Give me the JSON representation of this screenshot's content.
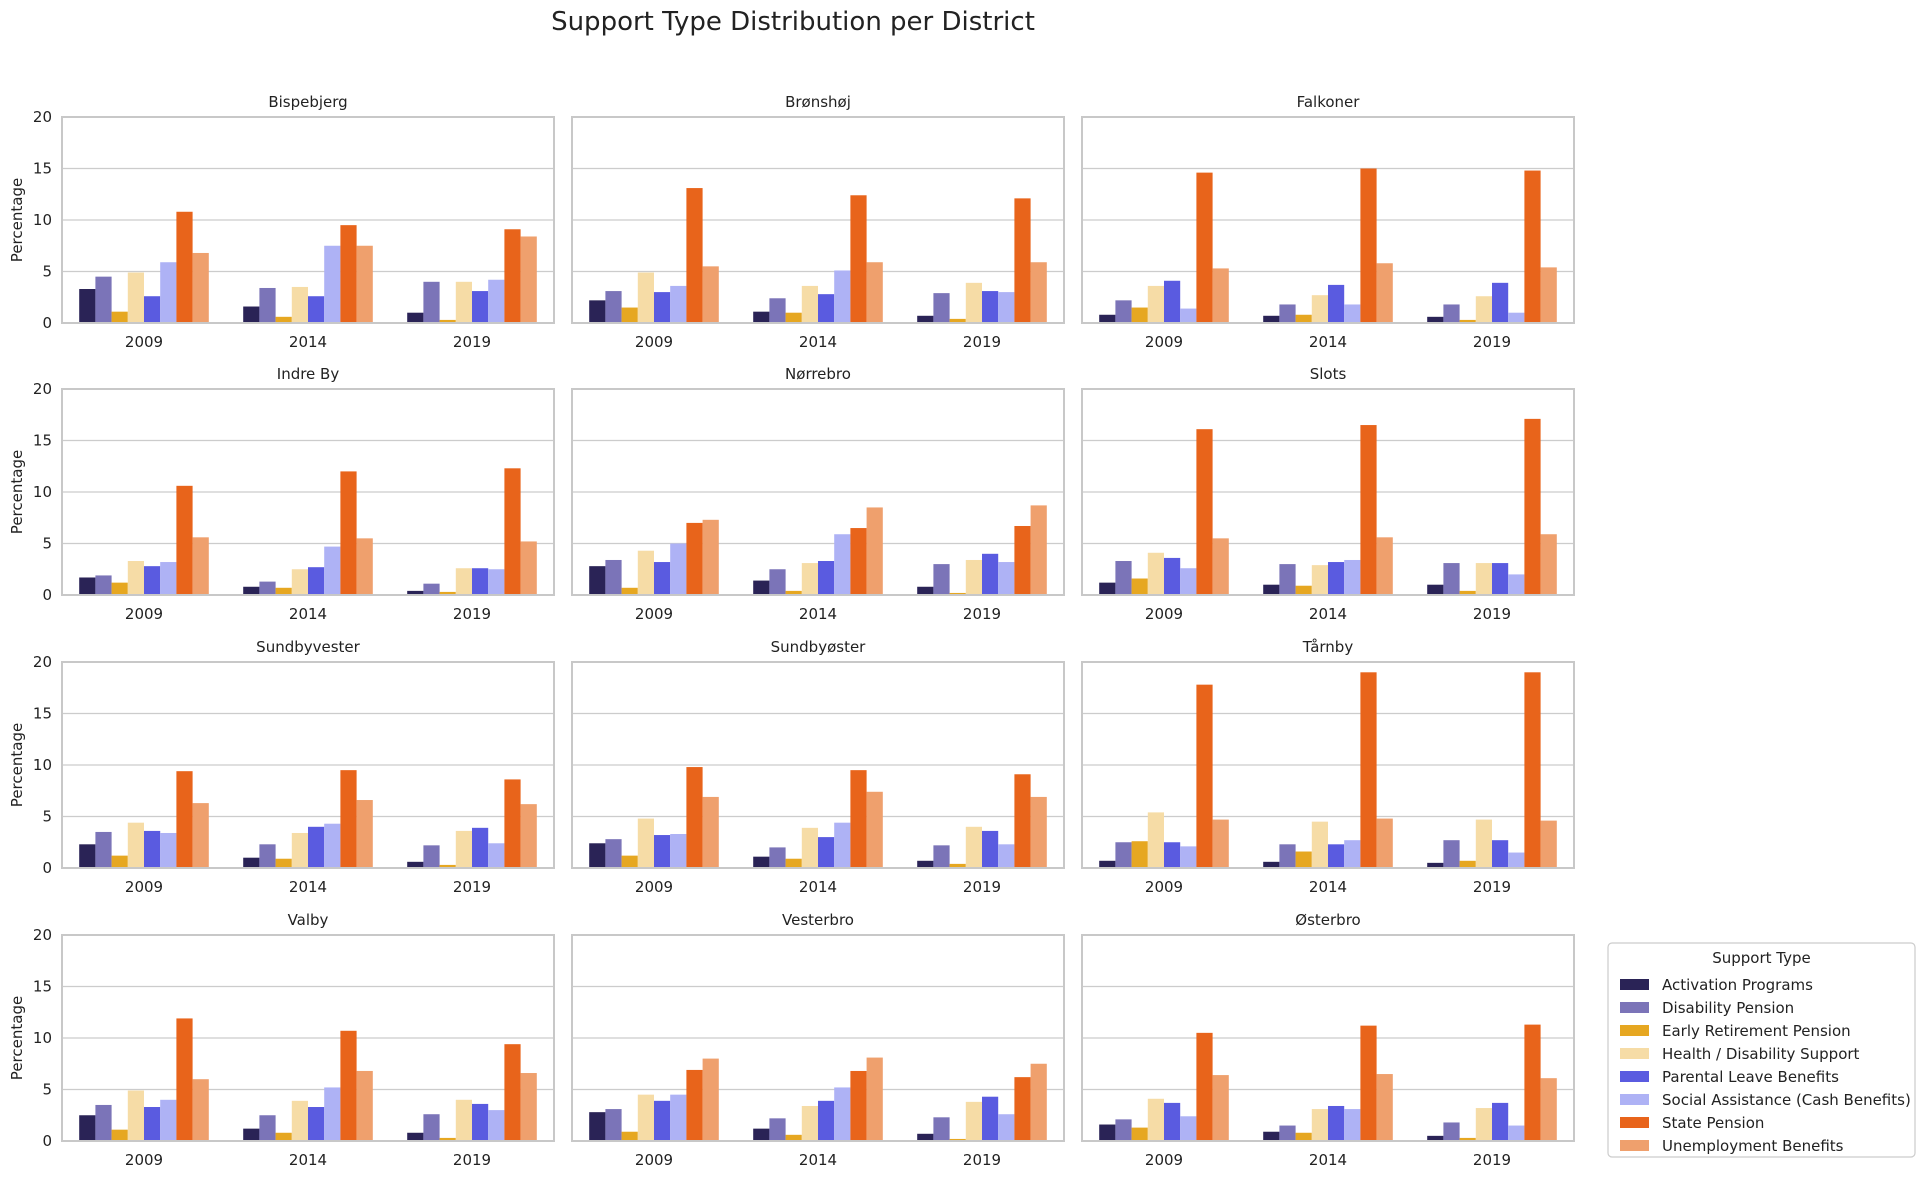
{
  "chart_data": {
    "type": "bar",
    "title": "Support Type Distribution per District",
    "ylabel": "Percentage",
    "xlabel": "",
    "ylim": [
      0,
      20
    ],
    "yticks": [
      0,
      5,
      10,
      15,
      20
    ],
    "grid": true,
    "legend_position": "right-bottom",
    "categories": [
      "2009",
      "2014",
      "2019"
    ],
    "legend": {
      "title": "Support Type",
      "entries": [
        {
          "name": "Activation Programs",
          "color": "#2a2356"
        },
        {
          "name": "Disability Pension",
          "color": "#7b74b8"
        },
        {
          "name": "Early Retirement Pension",
          "color": "#e6a721"
        },
        {
          "name": "Health / Disability Support",
          "color": "#f6dca6"
        },
        {
          "name": "Parental Leave Benefits",
          "color": "#5a5be0"
        },
        {
          "name": "Social Assistance (Cash Benefits)",
          "color": "#aeb2f5"
        },
        {
          "name": "State Pension",
          "color": "#e8641b"
        },
        {
          "name": "Unemployment Benefits",
          "color": "#efa06d"
        }
      ]
    },
    "panels": [
      {
        "title": "Bispebjerg",
        "values": [
          [
            3.3,
            4.5,
            1.1,
            4.9,
            2.6,
            5.9,
            10.8,
            6.8
          ],
          [
            1.6,
            3.4,
            0.6,
            3.5,
            2.6,
            7.5,
            9.5,
            7.5
          ],
          [
            1.0,
            4.0,
            0.3,
            4.0,
            3.1,
            4.2,
            9.1,
            8.4
          ]
        ]
      },
      {
        "title": "Brønshøj",
        "values": [
          [
            2.2,
            3.1,
            1.5,
            4.9,
            3.0,
            3.6,
            13.1,
            5.5
          ],
          [
            1.1,
            2.4,
            1.0,
            3.6,
            2.8,
            5.1,
            12.4,
            5.9
          ],
          [
            0.7,
            2.9,
            0.4,
            3.9,
            3.1,
            3.0,
            12.1,
            5.9
          ]
        ]
      },
      {
        "title": "Falkoner",
        "values": [
          [
            0.8,
            2.2,
            1.5,
            3.6,
            4.1,
            1.4,
            14.6,
            5.3
          ],
          [
            0.7,
            1.8,
            0.8,
            2.7,
            3.7,
            1.8,
            15.0,
            5.8
          ],
          [
            0.6,
            1.8,
            0.3,
            2.6,
            3.9,
            1.0,
            14.8,
            5.4
          ]
        ]
      },
      {
        "title": "Indre By",
        "values": [
          [
            1.7,
            1.9,
            1.2,
            3.3,
            2.8,
            3.2,
            10.6,
            5.6
          ],
          [
            0.8,
            1.3,
            0.7,
            2.5,
            2.7,
            4.7,
            12.0,
            5.5
          ],
          [
            0.4,
            1.1,
            0.3,
            2.6,
            2.6,
            2.5,
            12.3,
            5.2
          ]
        ]
      },
      {
        "title": "Nørrebro",
        "values": [
          [
            2.8,
            3.4,
            0.7,
            4.3,
            3.2,
            5.0,
            7.0,
            7.3
          ],
          [
            1.4,
            2.5,
            0.4,
            3.1,
            3.3,
            5.9,
            6.5,
            8.5
          ],
          [
            0.8,
            3.0,
            0.2,
            3.4,
            4.0,
            3.2,
            6.7,
            8.7
          ]
        ]
      },
      {
        "title": "Slots",
        "values": [
          [
            1.2,
            3.3,
            1.6,
            4.1,
            3.6,
            2.6,
            16.1,
            5.5
          ],
          [
            1.0,
            3.0,
            0.9,
            2.9,
            3.2,
            3.4,
            16.5,
            5.6
          ],
          [
            1.0,
            3.1,
            0.4,
            3.1,
            3.1,
            2.0,
            17.1,
            5.9
          ]
        ]
      },
      {
        "title": "Sundbyvester",
        "values": [
          [
            2.3,
            3.5,
            1.2,
            4.4,
            3.6,
            3.4,
            9.4,
            6.3
          ],
          [
            1.0,
            2.3,
            0.9,
            3.4,
            4.0,
            4.3,
            9.5,
            6.6
          ],
          [
            0.6,
            2.2,
            0.3,
            3.6,
            3.9,
            2.4,
            8.6,
            6.2
          ]
        ]
      },
      {
        "title": "Sundbyøster",
        "values": [
          [
            2.4,
            2.8,
            1.2,
            4.8,
            3.2,
            3.3,
            9.8,
            6.9
          ],
          [
            1.1,
            2.0,
            0.9,
            3.9,
            3.0,
            4.4,
            9.5,
            7.4
          ],
          [
            0.7,
            2.2,
            0.4,
            4.0,
            3.6,
            2.3,
            9.1,
            6.9
          ]
        ]
      },
      {
        "title": "Tårnby",
        "values": [
          [
            0.7,
            2.5,
            2.6,
            5.4,
            2.5,
            2.1,
            17.8,
            4.7
          ],
          [
            0.6,
            2.3,
            1.6,
            4.5,
            2.3,
            2.7,
            19.0,
            4.8
          ],
          [
            0.5,
            2.7,
            0.7,
            4.7,
            2.7,
            1.5,
            19.0,
            4.6
          ]
        ]
      },
      {
        "title": "Valby",
        "values": [
          [
            2.5,
            3.5,
            1.1,
            4.9,
            3.3,
            4.0,
            11.9,
            6.0
          ],
          [
            1.2,
            2.5,
            0.8,
            3.9,
            3.3,
            5.2,
            10.7,
            6.8
          ],
          [
            0.8,
            2.6,
            0.3,
            4.0,
            3.6,
            3.0,
            9.4,
            6.6
          ]
        ]
      },
      {
        "title": "Vesterbro",
        "values": [
          [
            2.8,
            3.1,
            0.9,
            4.5,
            3.9,
            4.5,
            6.9,
            8.0
          ],
          [
            1.2,
            2.2,
            0.6,
            3.4,
            3.9,
            5.2,
            6.8,
            8.1
          ],
          [
            0.7,
            2.3,
            0.2,
            3.8,
            4.3,
            2.6,
            6.2,
            7.5
          ]
        ]
      },
      {
        "title": "Østerbro",
        "values": [
          [
            1.6,
            2.1,
            1.3,
            4.1,
            3.7,
            2.4,
            10.5,
            6.4
          ],
          [
            0.9,
            1.5,
            0.8,
            3.1,
            3.4,
            3.1,
            11.2,
            6.5
          ],
          [
            0.5,
            1.8,
            0.3,
            3.2,
            3.7,
            1.5,
            11.3,
            6.1
          ]
        ]
      }
    ]
  }
}
